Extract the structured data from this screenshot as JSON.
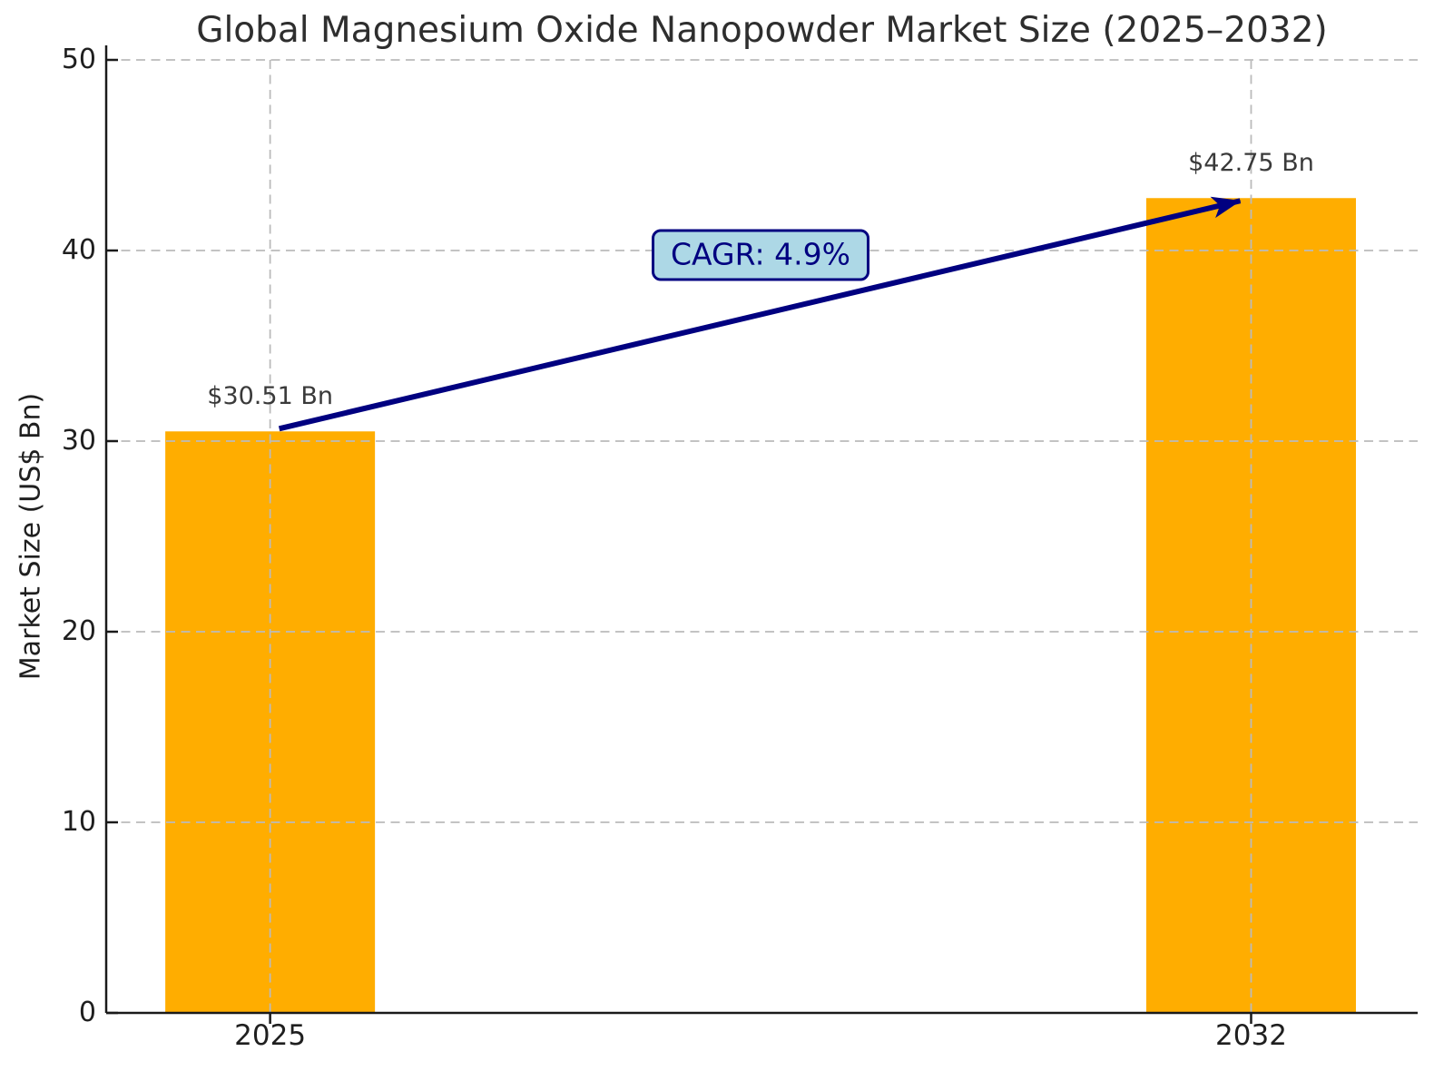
{
  "chart_data": {
    "type": "bar",
    "title": "Global Magnesium Oxide Nanopowder Market Size (2025–2032)",
    "ylabel": "Market Size (US$ Bn)",
    "xlabel": "",
    "categories": [
      "2025",
      "2032"
    ],
    "values": [
      30.51,
      42.75
    ],
    "value_labels": [
      "$30.51 Bn",
      "$42.75 Bn"
    ],
    "yticks": [
      0,
      10,
      20,
      30,
      40,
      50
    ],
    "ylim": [
      0,
      50
    ],
    "grid": true,
    "grid_style": "dashed",
    "legend": false,
    "annotation": {
      "label": "CAGR: 4.9%",
      "arrow_from": "2025",
      "arrow_to": "2032"
    },
    "colors": {
      "bar": "#FFAD00",
      "arrow": "#000080",
      "annotation_fill": "#ADD8E6",
      "annotation_border": "#000080",
      "annotation_text": "#000080",
      "grid": "#BBBBBB",
      "spine": "#1A1A1A",
      "tick_text": "#1F1F1F",
      "title_text": "#2E2E2E",
      "value_text": "#3A3A3A",
      "background": "#FFFFFF"
    }
  }
}
